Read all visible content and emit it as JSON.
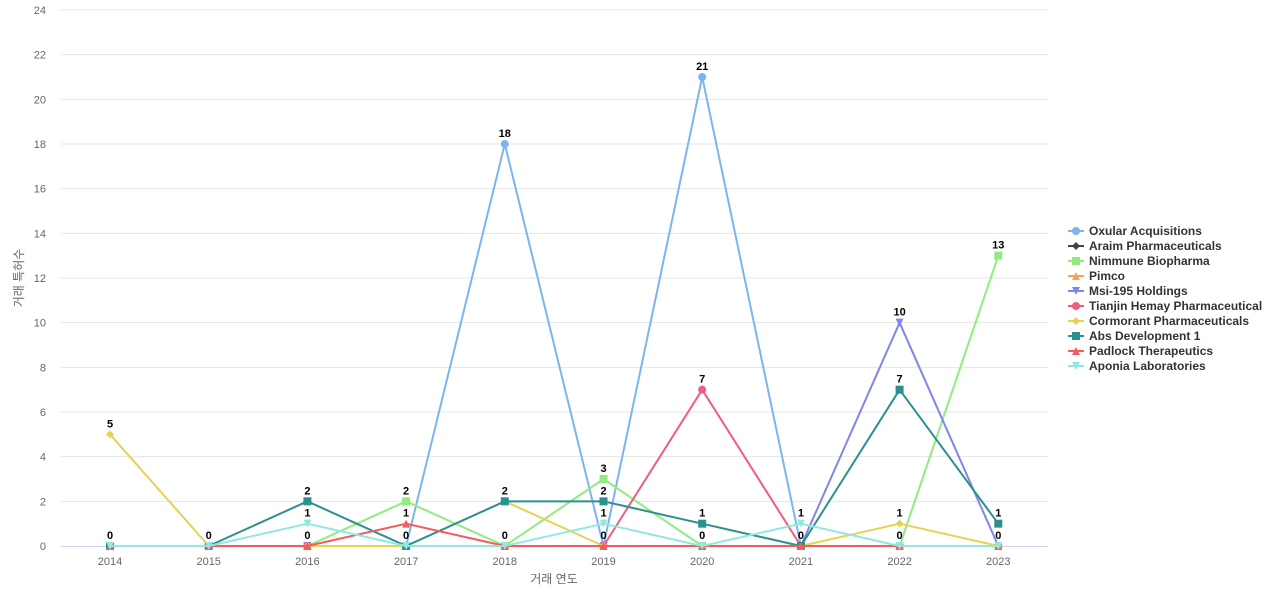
{
  "chart_data": {
    "type": "line",
    "x": [
      "2014",
      "2015",
      "2016",
      "2017",
      "2018",
      "2019",
      "2020",
      "2021",
      "2022",
      "2023"
    ],
    "xlabel": "거래 연도",
    "ylabel": "거래 특허수",
    "ylim": [
      0,
      24
    ],
    "yticks": [
      0,
      2,
      4,
      6,
      8,
      10,
      12,
      14,
      16,
      18,
      20,
      22,
      24
    ],
    "grid": true,
    "legend_position": "right",
    "series": [
      {
        "name": "Oxular Acquisitions",
        "color": "#7cb5ec",
        "marker": "circle",
        "values": [
          0,
          0,
          0,
          0,
          18,
          0,
          21,
          0,
          0,
          0
        ]
      },
      {
        "name": "Araim Pharmaceuticals",
        "color": "#434348",
        "marker": "diamond",
        "values": [
          0,
          0,
          0,
          0,
          0,
          0,
          0,
          0,
          0,
          0
        ]
      },
      {
        "name": "Nimmune Biopharma",
        "color": "#90ed7d",
        "marker": "square",
        "values": [
          0,
          0,
          0,
          2,
          0,
          3,
          0,
          0,
          0,
          13
        ]
      },
      {
        "name": "Pimco",
        "color": "#f7a35c",
        "marker": "triangle",
        "values": [
          0,
          0,
          0,
          0,
          0,
          0,
          0,
          0,
          0,
          0
        ]
      },
      {
        "name": "Msi-195 Holdings",
        "color": "#8085e9",
        "marker": "triangle-down",
        "values": [
          0,
          0,
          0,
          0,
          0,
          0,
          0,
          0,
          10,
          0
        ]
      },
      {
        "name": "Tianjin Hemay Pharmaceutical",
        "color": "#f15c80",
        "marker": "circle",
        "values": [
          0,
          0,
          0,
          0,
          0,
          0,
          7,
          0,
          0,
          0
        ]
      },
      {
        "name": "Cormorant Pharmaceuticals",
        "color": "#e4d354",
        "marker": "diamond",
        "values": [
          5,
          0,
          0,
          0,
          2,
          0,
          0,
          0,
          1,
          0
        ]
      },
      {
        "name": "Abs Development 1",
        "color": "#2b908f",
        "marker": "square",
        "values": [
          0,
          0,
          2,
          0,
          2,
          2,
          1,
          0,
          7,
          1
        ]
      },
      {
        "name": "Padlock Therapeutics",
        "color": "#f45b5b",
        "marker": "triangle",
        "values": [
          0,
          0,
          0,
          1,
          0,
          0,
          0,
          0,
          0,
          0
        ]
      },
      {
        "name": "Aponia Laboratories",
        "color": "#91e8e1",
        "marker": "triangle-down",
        "values": [
          0,
          0,
          1,
          0,
          0,
          1,
          0,
          1,
          0,
          0
        ]
      }
    ],
    "data_labels": [
      {
        "x": "2014",
        "value": 0
      },
      {
        "x": "2014",
        "value": 5
      },
      {
        "x": "2015",
        "value": 0
      },
      {
        "x": "2016",
        "value": 0
      },
      {
        "x": "2016",
        "value": 1
      },
      {
        "x": "2016",
        "value": 2
      },
      {
        "x": "2017",
        "value": 0
      },
      {
        "x": "2017",
        "value": 1
      },
      {
        "x": "2017",
        "value": 2
      },
      {
        "x": "2018",
        "value": 0
      },
      {
        "x": "2018",
        "value": 2
      },
      {
        "x": "2018",
        "value": 18
      },
      {
        "x": "2019",
        "value": 0
      },
      {
        "x": "2019",
        "value": 1
      },
      {
        "x": "2019",
        "value": 2
      },
      {
        "x": "2019",
        "value": 3
      },
      {
        "x": "2020",
        "value": 0
      },
      {
        "x": "2020",
        "value": 1
      },
      {
        "x": "2020",
        "value": 7
      },
      {
        "x": "2020",
        "value": 21
      },
      {
        "x": "2021",
        "value": 0
      },
      {
        "x": "2021",
        "value": 1
      },
      {
        "x": "2022",
        "value": 0
      },
      {
        "x": "2022",
        "value": 1
      },
      {
        "x": "2022",
        "value": 7
      },
      {
        "x": "2022",
        "value": 10
      },
      {
        "x": "2023",
        "value": 0
      },
      {
        "x": "2023",
        "value": 1
      },
      {
        "x": "2023",
        "value": 13
      }
    ]
  }
}
